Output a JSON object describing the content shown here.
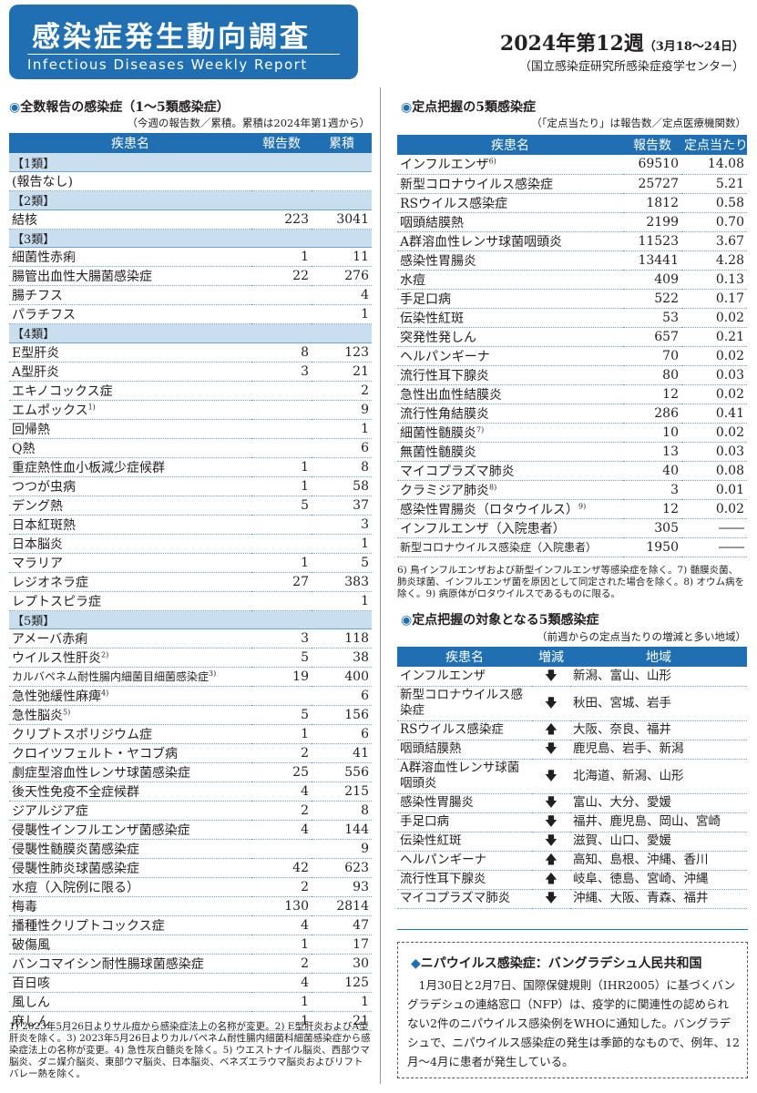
{
  "header": {
    "title_jp": "感染症発生動向調査",
    "title_en": "Infectious Diseases Weekly Report",
    "week": "2024年第12週",
    "week_range": "（3月18～24日）",
    "org": "（国立感染症研究所感染症疫学センター）"
  },
  "section1": {
    "title": "全数報告の感染症（1～5類感染症）",
    "subtitle": "（今週の報告数／累積。累積は2024年第1週から）",
    "columns": [
      "疾患名",
      "報告数",
      "累積"
    ],
    "rows": [
      {
        "type": "cat",
        "name": "【1類】"
      },
      {
        "name": "(報告なし)",
        "count": "",
        "total": ""
      },
      {
        "type": "cat",
        "name": "【2類】"
      },
      {
        "name": "結核",
        "count": "223",
        "total": "3041"
      },
      {
        "type": "cat",
        "name": "【3類】"
      },
      {
        "name": "細菌性赤痢",
        "count": "1",
        "total": "11"
      },
      {
        "name": "腸管出血性大腸菌感染症",
        "count": "22",
        "total": "276"
      },
      {
        "name": "腸チフス",
        "count": "",
        "total": "4"
      },
      {
        "name": "パラチフス",
        "count": "",
        "total": "1"
      },
      {
        "type": "cat",
        "name": "【4類】"
      },
      {
        "name": "E型肝炎",
        "count": "8",
        "total": "123"
      },
      {
        "name": "A型肝炎",
        "count": "3",
        "total": "21"
      },
      {
        "name": "エキノコックス症",
        "count": "",
        "total": "2"
      },
      {
        "name": "エムポックス",
        "sup": "1)",
        "count": "",
        "total": "9"
      },
      {
        "name": "回帰熱",
        "count": "",
        "total": "1"
      },
      {
        "name": "Q熱",
        "count": "",
        "total": "6"
      },
      {
        "name": "重症熱性血小板減少症候群",
        "count": "1",
        "total": "8"
      },
      {
        "name": "つつが虫病",
        "count": "1",
        "total": "58"
      },
      {
        "name": "デング熱",
        "count": "5",
        "total": "37"
      },
      {
        "name": "日本紅斑熱",
        "count": "",
        "total": "3"
      },
      {
        "name": "日本脳炎",
        "count": "",
        "total": "1"
      },
      {
        "name": "マラリア",
        "count": "1",
        "total": "5"
      },
      {
        "name": "レジオネラ症",
        "count": "27",
        "total": "383"
      },
      {
        "name": "レプトスピラ症",
        "count": "",
        "total": "1"
      },
      {
        "type": "cat",
        "name": "【5類】"
      },
      {
        "name": "アメーバ赤痢",
        "count": "3",
        "total": "118"
      },
      {
        "name": "ウイルス性肝炎",
        "sup": "2)",
        "count": "5",
        "total": "38"
      },
      {
        "name": "カルバペネム耐性腸内細菌目細菌感染症",
        "sup": "3)",
        "count": "19",
        "total": "400",
        "small": true
      },
      {
        "name": "急性弛緩性麻痺",
        "sup": "4)",
        "count": "",
        "total": "6"
      },
      {
        "name": "急性脳炎",
        "sup": "5)",
        "count": "5",
        "total": "156"
      },
      {
        "name": "クリプトスポリジウム症",
        "count": "1",
        "total": "6"
      },
      {
        "name": "クロイツフェルト・ヤコブ病",
        "count": "2",
        "total": "41"
      },
      {
        "name": "劇症型溶血性レンサ球菌感染症",
        "count": "25",
        "total": "556"
      },
      {
        "name": "後天性免疫不全症候群",
        "count": "4",
        "total": "215"
      },
      {
        "name": "ジアルジア症",
        "count": "2",
        "total": "8"
      },
      {
        "name": "侵襲性インフルエンザ菌感染症",
        "count": "4",
        "total": "144"
      },
      {
        "name": "侵襲性髄膜炎菌感染症",
        "count": "",
        "total": "9"
      },
      {
        "name": "侵襲性肺炎球菌感染症",
        "count": "42",
        "total": "623"
      },
      {
        "name": "水痘（入院例に限る）",
        "count": "2",
        "total": "93"
      },
      {
        "name": "梅毒",
        "count": "130",
        "total": "2814"
      },
      {
        "name": "播種性クリプトコックス症",
        "count": "4",
        "total": "47"
      },
      {
        "name": "破傷風",
        "count": "1",
        "total": "17"
      },
      {
        "name": "バンコマイシン耐性腸球菌感染症",
        "count": "2",
        "total": "30"
      },
      {
        "name": "百日咳",
        "count": "4",
        "total": "125"
      },
      {
        "name": "風しん",
        "count": "1",
        "total": "1"
      },
      {
        "name": "麻しん",
        "count": "1",
        "total": "21"
      }
    ],
    "note": "1) 2023年5月26日よりサル痘から感染症法上の名称が変更。2) E型肝炎およびA型肝炎を除く。3) 2023年5月26日よりカルバペネム耐性腸内細菌科細菌感染症から感染症法上の名称が変更。4) 急性灰白髄炎を除く。5) ウエストナイル脳炎、西部ウマ脳炎、ダニ媒介脳炎、東部ウマ脳炎、日本脳炎、ベネズエラウマ脳炎およびリフトバレー熱を除く。"
  },
  "section2": {
    "title": "定点把握の5類感染症",
    "subtitle": "（「定点当たり」は報告数／定点医療機関数）",
    "columns": [
      "疾患名",
      "報告数",
      "定点当たり"
    ],
    "rows": [
      {
        "name": "インフルエンザ",
        "sup": "6)",
        "count": "69510",
        "per": "14.08"
      },
      {
        "name": "新型コロナウイルス感染症",
        "count": "25727",
        "per": "5.21"
      },
      {
        "name": "RSウイルス感染症",
        "count": "1812",
        "per": "0.58"
      },
      {
        "name": "咽頭結膜熱",
        "count": "2199",
        "per": "0.70"
      },
      {
        "name": "A群溶血性レンサ球菌咽頭炎",
        "count": "11523",
        "per": "3.67"
      },
      {
        "name": "感染性胃腸炎",
        "count": "13441",
        "per": "4.28"
      },
      {
        "name": "水痘",
        "count": "409",
        "per": "0.13"
      },
      {
        "name": "手足口病",
        "count": "522",
        "per": "0.17"
      },
      {
        "name": "伝染性紅斑",
        "count": "53",
        "per": "0.02"
      },
      {
        "name": "突発性発しん",
        "count": "657",
        "per": "0.21"
      },
      {
        "name": "ヘルパンギーナ",
        "count": "70",
        "per": "0.02"
      },
      {
        "name": "流行性耳下腺炎",
        "count": "80",
        "per": "0.03"
      },
      {
        "name": "急性出血性結膜炎",
        "count": "12",
        "per": "0.02"
      },
      {
        "name": "流行性角結膜炎",
        "count": "286",
        "per": "0.41"
      },
      {
        "name": "細菌性髄膜炎",
        "sup": "7)",
        "count": "10",
        "per": "0.02"
      },
      {
        "name": "無菌性髄膜炎",
        "count": "13",
        "per": "0.03"
      },
      {
        "name": "マイコプラズマ肺炎",
        "count": "40",
        "per": "0.08"
      },
      {
        "name": "クラミジア肺炎",
        "sup": "8)",
        "count": "3",
        "per": "0.01"
      },
      {
        "name": "感染性胃腸炎（ロタウイルス）",
        "sup": "9)",
        "count": "12",
        "per": "0.02"
      },
      {
        "name": "インフルエンザ（入院患者）",
        "count": "305",
        "per": "――"
      },
      {
        "name": "新型コロナウイルス感染症（入院患者）",
        "count": "1950",
        "per": "――",
        "small": true
      }
    ],
    "note": "6) 鳥インフルエンザおよび新型インフルエンザ等感染症を除く。7) 髄膜炎菌、肺炎球菌、インフルエンザ菌を原因として同定された場合を除く。8) オウム病を除く。9) 病原体がロタウイルスであるものに限る。"
  },
  "section3": {
    "title": "定点把握の対象となる5類感染症",
    "subtitle": "（前週からの定点当たりの増減と多い地域）",
    "columns": [
      "疾患名",
      "増減",
      "地域"
    ],
    "rows": [
      {
        "name": "インフルエンザ",
        "trend": "down",
        "arrow": "🡇",
        "regions": "新潟、富山、山形"
      },
      {
        "name": "新型コロナウイルス感染症",
        "trend": "down",
        "arrow": "🡇",
        "regions": "秋田、宮城、岩手",
        "tall": true
      },
      {
        "name": "RSウイルス感染症",
        "trend": "up",
        "arrow": "🡅",
        "regions": "大阪、奈良、福井"
      },
      {
        "name": "咽頭結膜熱",
        "trend": "down",
        "arrow": "🡇",
        "regions": "鹿児島、岩手、新潟"
      },
      {
        "name": "A群溶血性レンサ球菌咽頭炎",
        "trend": "down",
        "arrow": "🡇",
        "regions": "北海道、新潟、山形",
        "tall": true
      },
      {
        "name": "感染性胃腸炎",
        "trend": "down",
        "arrow": "🡇",
        "regions": "富山、大分、愛媛"
      },
      {
        "name": "手足口病",
        "trend": "down",
        "arrow": "🡇",
        "regions": "福井、鹿児島、岡山、宮崎"
      },
      {
        "name": "伝染性紅斑",
        "trend": "down",
        "arrow": "🡇",
        "regions": "滋賀、山口、愛媛"
      },
      {
        "name": "ヘルパンギーナ",
        "trend": "up",
        "arrow": "🡅",
        "regions": "高知、島根、沖縄、香川"
      },
      {
        "name": "流行性耳下腺炎",
        "trend": "up",
        "arrow": "🡅",
        "regions": "岐阜、徳島、宮崎、沖縄"
      },
      {
        "name": "マイコプラズマ肺炎",
        "trend": "down",
        "arrow": "🡇",
        "regions": "沖縄、大阪、青森、福井"
      }
    ]
  },
  "topic": {
    "mark": "◆",
    "title": "ニパウイルス感染症：バングラデシュ人民共和国",
    "body": "1月30日と2月7日、国際保健規則（IHR2005）に基づくバングラデシュの連絡窓口（NFP）は、疫学的に関連性の認められない2件のニパウイルス感染例をWHOに通知した。バングラデシュで、ニパウイルス感染症の発生は季節的なもので、例年、12月～4月に患者が発生している。"
  },
  "colors": {
    "accent": "#1f6fb2",
    "category_bg": "#c9dff0"
  }
}
